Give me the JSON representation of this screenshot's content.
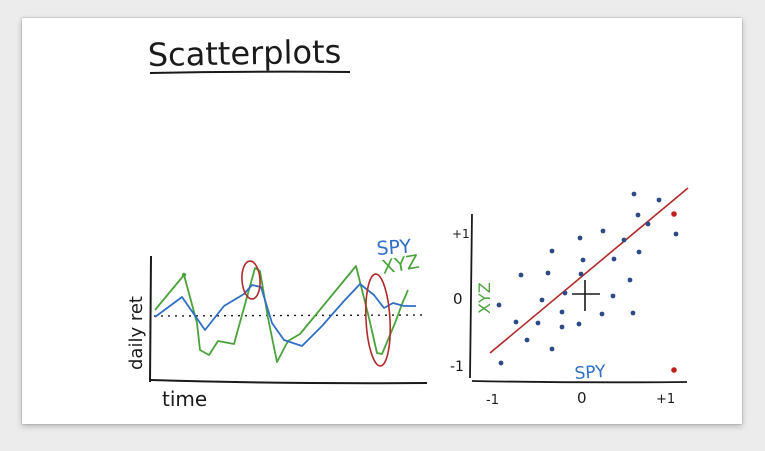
{
  "title": "Scatterplots",
  "left_plot": {
    "ylabel": "daily ret",
    "xlabel": "time",
    "legend": [
      {
        "label": "SPY",
        "color": "#2f6fc4"
      },
      {
        "label": "XYZ",
        "color": "#4aa33a"
      }
    ]
  },
  "right_plot": {
    "xlabel": "SPY",
    "ylabel": "XYZ",
    "xticks": [
      "-1",
      "0",
      "+1"
    ],
    "yticks": [
      "+1",
      "0",
      "-1"
    ]
  },
  "colors": {
    "ink": "#1a1a1a",
    "spy": "#2f6fc4",
    "xyz": "#4aa33a",
    "highlight": "#b02a2a",
    "dots": "#2b4a86"
  }
}
